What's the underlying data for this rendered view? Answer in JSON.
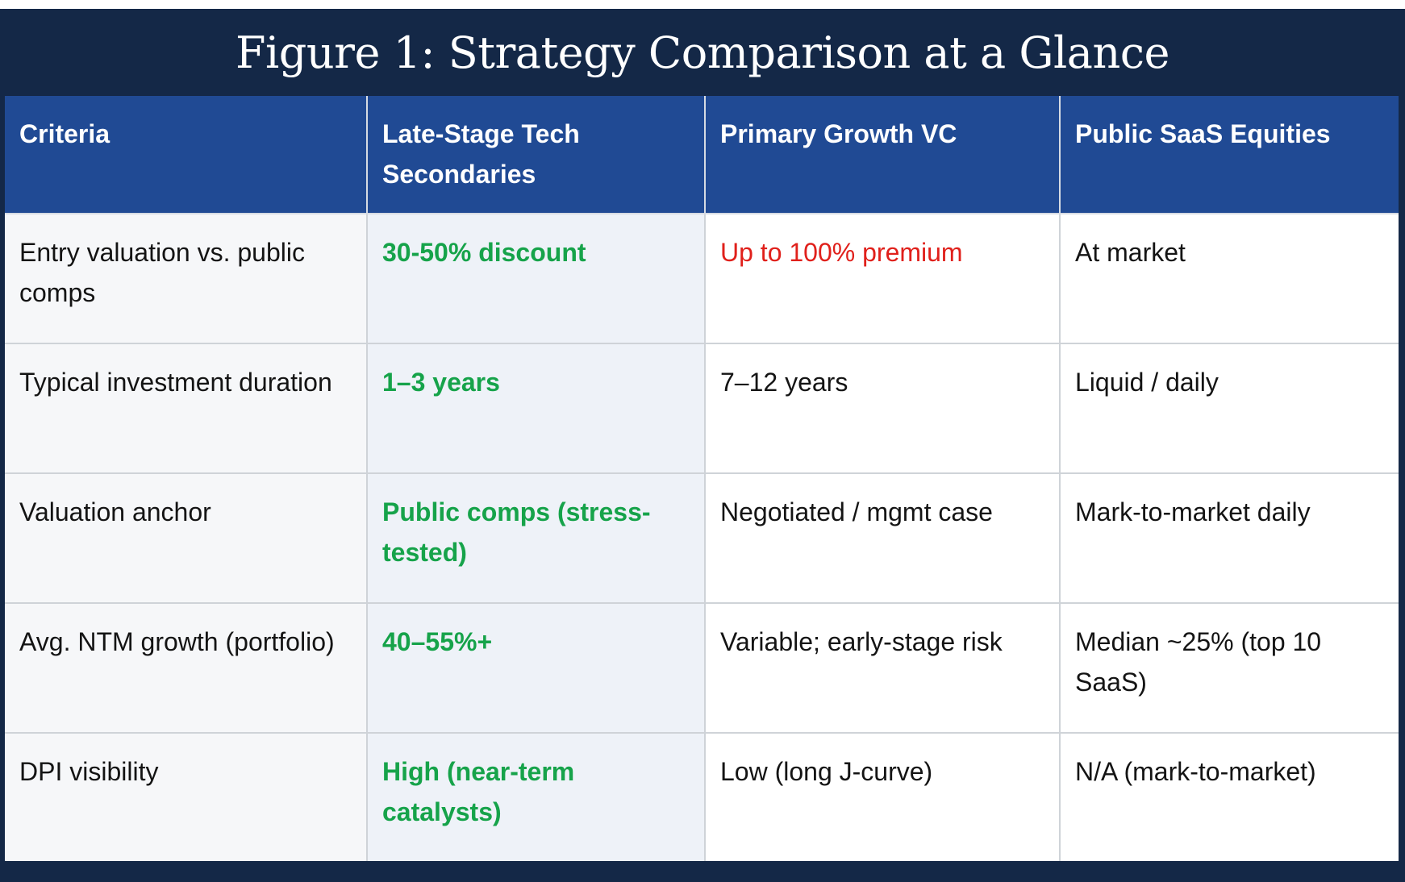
{
  "title": "Figure 1: Strategy Comparison at a Glance",
  "colors": {
    "title_bg": "#142847",
    "header_bg": "#204a94",
    "positive_text": "#16a34a",
    "negative_text": "#e0201b",
    "highlight_col_bg": "#eef2f8"
  },
  "table": {
    "headers": [
      "Criteria",
      "Late-Stage Tech Secondaries",
      "Primary Growth VC",
      "Public SaaS Equities"
    ],
    "rows": [
      [
        "Entry valuation vs. public comps",
        "30-50% discount",
        "Up to 100% premium",
        "At market"
      ],
      [
        "Typical investment duration",
        "1–3 years",
        "7–12 years",
        "Liquid / daily"
      ],
      [
        "Valuation anchor",
        "Public comps (stress-tested)",
        "Negotiated / mgmt case",
        "Mark-to-market daily"
      ],
      [
        "Avg. NTM growth (portfolio)",
        "40–55%+",
        "Variable; early-stage risk",
        "Median ~25% (top 10 SaaS)"
      ],
      [
        "DPI visibility",
        "High (near-term catalysts)",
        "Low (long J-curve)",
        "N/A (mark-to-market)"
      ]
    ]
  }
}
